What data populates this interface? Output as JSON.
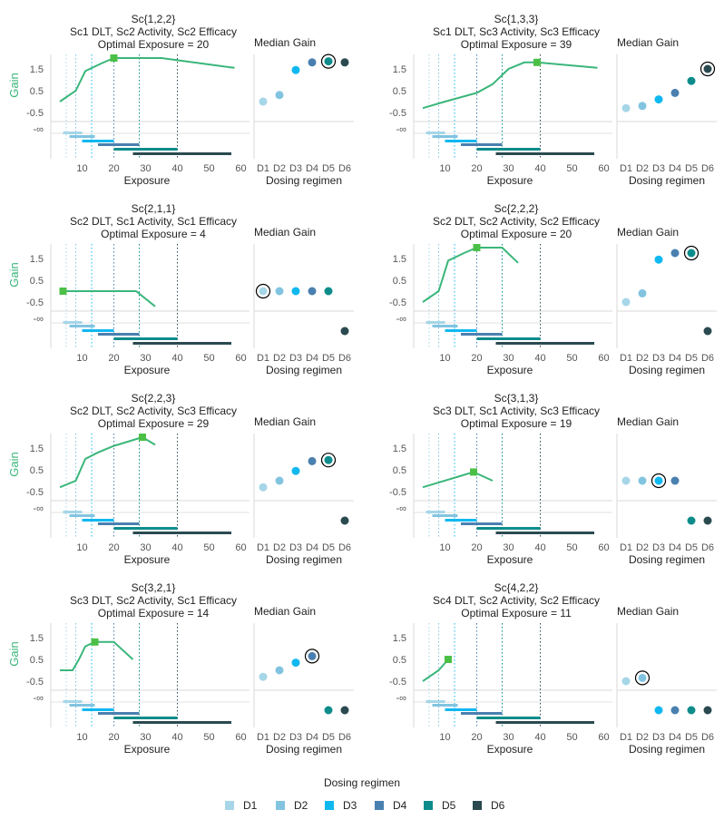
{
  "figure": {
    "gain_axis_label": "Gain",
    "x_axis_label": "Exposure",
    "median_gain_title": "Median Gain",
    "regimen_axis_label": "Dosing regimen",
    "neg_inf_label": "-∞",
    "optimal_prefix": "Optimal Exposure = "
  },
  "legend": {
    "title": "Dosing regimen",
    "items": [
      "D1",
      "D2",
      "D3",
      "D4",
      "D5",
      "D6"
    ]
  },
  "colors": {
    "D1": "#a6d6e8",
    "D2": "#82c4e0",
    "D3": "#10b8f0",
    "D4": "#4a80b0",
    "D5": "#0e8c8c",
    "D6": "#2a4a50",
    "gain_line": "#3ab67a",
    "optimal_marker": "#4cc046",
    "axis_title_green": "#3ab67a",
    "grid": "#d8d8d8",
    "text": "#222222",
    "tick": "#555555"
  },
  "chart_data": [
    {
      "type": "line",
      "id": "p1",
      "title": "Sc{1,2,2}",
      "subtitle": "Sc1 DLT, Sc2 Activity, Sc2 Efficacy",
      "optimal_exposure": 20,
      "gain_curve": [
        [
          3,
          0
        ],
        [
          8,
          0.5
        ],
        [
          11,
          1.4
        ],
        [
          16,
          1.75
        ],
        [
          20,
          2.0
        ],
        [
          30,
          2.0
        ],
        [
          35,
          2.0
        ],
        [
          58,
          1.55
        ]
      ],
      "median_gain": {
        "D1": 0.0,
        "D2": 0.3,
        "D3": 1.45,
        "D4": 1.8,
        "D5": 1.85,
        "D6": 1.8
      },
      "circled": "D5"
    },
    {
      "type": "line",
      "id": "p2",
      "title": "Sc{1,3,3}",
      "subtitle": "Sc1 DLT, Sc3 Activity, Sc3 Efficacy",
      "optimal_exposure": 39,
      "gain_curve": [
        [
          3,
          -0.3
        ],
        [
          10,
          0.0
        ],
        [
          20,
          0.4
        ],
        [
          25,
          0.8
        ],
        [
          30,
          1.5
        ],
        [
          35,
          1.8
        ],
        [
          39,
          1.8
        ],
        [
          58,
          1.55
        ]
      ],
      "median_gain": {
        "D1": -0.3,
        "D2": -0.2,
        "D3": 0.1,
        "D4": 0.4,
        "D5": 0.95,
        "D6": 1.5
      },
      "circled": "D6"
    },
    {
      "type": "line",
      "id": "p3",
      "title": "Sc{2,1,1}",
      "subtitle": "Sc2 DLT, Sc1 Activity, Sc1 Efficacy",
      "optimal_exposure": 4,
      "gain_curve": [
        [
          4,
          0
        ],
        [
          27,
          0
        ],
        [
          33,
          -0.7
        ]
      ],
      "median_gain": {
        "D1": 0.0,
        "D2": 0.0,
        "D3": 0.0,
        "D4": 0.0,
        "D5": 0.0,
        "D6": null
      },
      "circled": "D1"
    },
    {
      "type": "line",
      "id": "p4",
      "title": "Sc{2,2,2}",
      "subtitle": "Sc2 DLT, Sc2 Activity, Sc2 Efficacy",
      "optimal_exposure": 20,
      "gain_curve": [
        [
          3,
          -0.5
        ],
        [
          8,
          0
        ],
        [
          11,
          1.4
        ],
        [
          16,
          1.75
        ],
        [
          20,
          2.0
        ],
        [
          28,
          2.0
        ],
        [
          33,
          1.3
        ]
      ],
      "median_gain": {
        "D1": -0.5,
        "D2": -0.1,
        "D3": 1.45,
        "D4": 1.75,
        "D5": 1.75,
        "D6": null
      },
      "circled": "D5"
    },
    {
      "type": "line",
      "id": "p5",
      "title": "Sc{2,2,3}",
      "subtitle": "Sc2 DLT, Sc2 Activity, Sc3 Efficacy",
      "optimal_exposure": 29,
      "gain_curve": [
        [
          3,
          -0.3
        ],
        [
          8,
          0
        ],
        [
          11,
          1.0
        ],
        [
          15,
          1.3
        ],
        [
          20,
          1.6
        ],
        [
          29,
          2.0
        ],
        [
          33,
          1.65
        ]
      ],
      "median_gain": {
        "D1": -0.3,
        "D2": 0.0,
        "D3": 0.45,
        "D4": 0.9,
        "D5": 0.95,
        "D6": null
      },
      "circled": "D5"
    },
    {
      "type": "line",
      "id": "p6",
      "title": "Sc{3,1,3}",
      "subtitle": "Sc3 DLT, Sc1 Activity, Sc3 Efficacy",
      "optimal_exposure": 19,
      "gain_curve": [
        [
          3,
          -0.3
        ],
        [
          19,
          0.4
        ],
        [
          25,
          0
        ]
      ],
      "median_gain": {
        "D1": 0.0,
        "D2": 0.0,
        "D3": 0.0,
        "D4": 0.0,
        "D5": null,
        "D6": null
      },
      "circled": "D3"
    },
    {
      "type": "line",
      "id": "p7",
      "title": "Sc{3,2,1}",
      "subtitle": "Sc3 DLT, Sc2 Activity, Sc1 Efficacy",
      "optimal_exposure": 14,
      "gain_curve": [
        [
          3,
          0
        ],
        [
          7,
          0
        ],
        [
          9,
          0.5
        ],
        [
          11,
          1.1
        ],
        [
          14,
          1.3
        ],
        [
          20,
          1.3
        ],
        [
          26,
          0.5
        ]
      ],
      "median_gain": {
        "D1": -0.3,
        "D2": 0.0,
        "D3": 0.35,
        "D4": 0.65,
        "D5": null,
        "D6": null
      },
      "circled": "D4"
    },
    {
      "type": "line",
      "id": "p8",
      "title": "Sc{4,2,2}",
      "subtitle": "Sc4 DLT, Sc2 Activity, Sc2 Efficacy",
      "optimal_exposure": 11,
      "gain_curve": [
        [
          3,
          -0.5
        ],
        [
          8,
          0
        ],
        [
          11,
          0.5
        ]
      ],
      "median_gain": {
        "D1": -0.5,
        "D2": -0.35,
        "D3": null,
        "D4": null,
        "D5": null,
        "D6": null
      },
      "circled": "D2"
    }
  ],
  "axes": {
    "x_ticks": [
      10,
      20,
      30,
      40,
      50,
      60
    ],
    "x_range": [
      0,
      60
    ],
    "y_ticks": [
      "1.5",
      "0.5",
      "-0.5"
    ],
    "y_range": [
      -1,
      2.5
    ],
    "regimens": [
      "D1",
      "D2",
      "D3",
      "D4",
      "D5",
      "D6"
    ]
  }
}
